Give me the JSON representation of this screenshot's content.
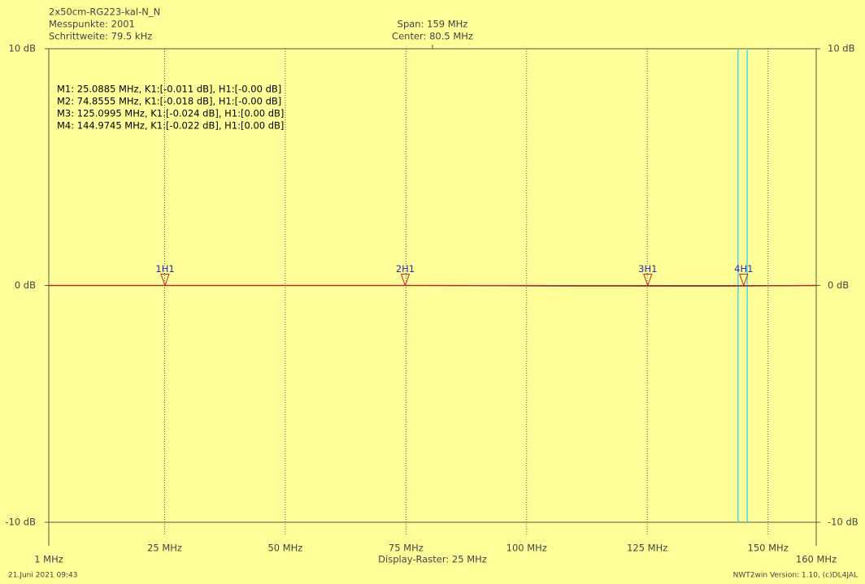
{
  "chart_data": {
    "type": "line",
    "title": "2x50cm-RG223-kal-N_N",
    "info_left": [
      "Messpunkte: 2001",
      "Schrittweite: 79.5 kHz"
    ],
    "info_center": [
      "Span: 159 MHz",
      "Center: 80.5 MHz"
    ],
    "x_axis_label": "Display-Raster: 25 MHz",
    "xlim": [
      1,
      160
    ],
    "xticks": [
      {
        "value": 1,
        "label": "1 MHz"
      },
      {
        "value": 25,
        "label": "25 MHz"
      },
      {
        "value": 50,
        "label": "50 MHz"
      },
      {
        "value": 75,
        "label": "75 MHz"
      },
      {
        "value": 100,
        "label": "100 MHz"
      },
      {
        "value": 125,
        "label": "125 MHz"
      },
      {
        "value": 150,
        "label": "150 MHz"
      },
      {
        "value": 160,
        "label": "160 MHz"
      }
    ],
    "ylim": [
      -10,
      10
    ],
    "yticks": [
      {
        "value": -10,
        "label": "-10 dB"
      },
      {
        "value": 0,
        "label": "0 dB"
      },
      {
        "value": 10,
        "label": "10 dB"
      }
    ],
    "grid": true,
    "x": [
      1,
      20,
      40,
      60,
      80,
      100,
      110,
      120,
      130,
      140,
      150,
      160
    ],
    "series": [
      {
        "color": "#1a1a8c",
        "values": [
          0,
          0,
          0,
          0,
          0,
          -0.01,
          -0.02,
          -0.02,
          -0.02,
          -0.02,
          -0.01,
          0
        ]
      },
      {
        "color": "#c0262b",
        "values": [
          0,
          0,
          0,
          0,
          0,
          0,
          -0.01,
          -0.01,
          -0.02,
          -0.02,
          -0.01,
          0
        ]
      }
    ],
    "cursor_lines": {
      "color": "#4fd6e8",
      "x": [
        143.8,
        145.7
      ]
    },
    "markers": [
      {
        "tag": "1H1",
        "freq": 25.0885,
        "text": "M1: 25.0885 MHz, K1:[-0.011 dB], H1:[-0.00 dB]"
      },
      {
        "tag": "2H1",
        "freq": 74.8555,
        "text": "M2: 74.8555 MHz, K1:[-0.018 dB], H1:[-0.00 dB]"
      },
      {
        "tag": "3H1",
        "freq": 125.0995,
        "text": "M3: 125.0995 MHz, K1:[-0.024 dB], H1:[0.00 dB]"
      },
      {
        "tag": "4H1",
        "freq": 144.9745,
        "text": "M4: 144.9745 MHz, K1:[-0.022 dB], H1:[0.00 dB]"
      }
    ],
    "footer_left": "21.Juni 2021 09:43",
    "footer_right": "NWT2win Version: 1.10, (c)DL4JAL"
  }
}
